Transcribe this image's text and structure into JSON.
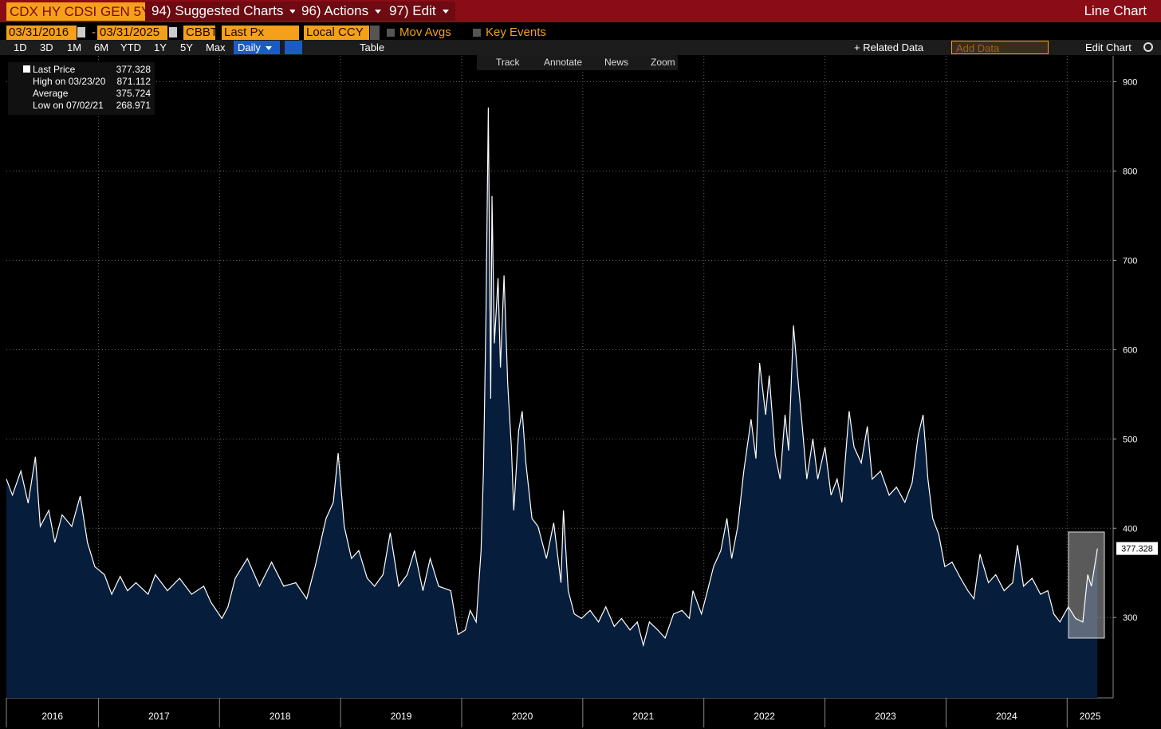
{
  "header": {
    "security": "CDX HY CDSI GEN 5Y",
    "menus": [
      "94) Suggested Charts",
      "96) Actions",
      "97) Edit"
    ],
    "chart_kind": "Line Chart"
  },
  "settings": {
    "start_date": "03/31/2016",
    "separator": "-",
    "end_date": "03/31/2025",
    "source": "CBBT",
    "field": "Last Px",
    "currency": "Local CCY",
    "options": [
      "Mov Avgs",
      "Key Events"
    ]
  },
  "toolbar": {
    "periods": [
      "1D",
      "3D",
      "1M",
      "6M",
      "YTD",
      "1Y",
      "5Y",
      "Max"
    ],
    "frequency": "Daily",
    "table": "Table",
    "related": "+ Related Data",
    "add_data": "Add Data",
    "edit": "Edit Chart"
  },
  "chart_tools": [
    "Track",
    "Annotate",
    "News",
    "Zoom"
  ],
  "legend": [
    {
      "label": "Last Price",
      "value": "377.328"
    },
    {
      "label": "High on 03/23/20",
      "value": "871.112"
    },
    {
      "label": "Average",
      "value": "375.724"
    },
    {
      "label": "Low on 07/02/21",
      "value": "268.971"
    }
  ],
  "chart_data": {
    "type": "line",
    "xlim": [
      2016.24,
      2025.38
    ],
    "ylim": [
      210,
      929
    ],
    "yticks": [
      300,
      400,
      500,
      600,
      700,
      800,
      900
    ],
    "xticks": [
      2017,
      2018,
      2019,
      2020,
      2021,
      2022,
      2023,
      2024,
      2025
    ],
    "year_labels": [
      "2016",
      "2017",
      "2018",
      "2019",
      "2020",
      "2021",
      "2022",
      "2023",
      "2024",
      "2025"
    ],
    "grid": true,
    "series": [
      {
        "name": "Last Price",
        "color": "#ffffff",
        "fill": "#071d3c",
        "x": [
          2016.24,
          2016.29,
          2016.36,
          2016.42,
          2016.48,
          2016.52,
          2016.59,
          2016.64,
          2016.7,
          2016.78,
          2016.85,
          2016.91,
          2016.97,
          2017.05,
          2017.11,
          2017.18,
          2017.24,
          2017.31,
          2017.41,
          2017.47,
          2017.57,
          2017.67,
          2017.77,
          2017.87,
          2017.93,
          2018.02,
          2018.07,
          2018.13,
          2018.23,
          2018.33,
          2018.43,
          2018.53,
          2018.63,
          2018.72,
          2018.79,
          2018.88,
          2018.94,
          2018.98,
          2019.03,
          2019.09,
          2019.15,
          2019.22,
          2019.28,
          2019.35,
          2019.41,
          2019.48,
          2019.55,
          2019.61,
          2019.68,
          2019.74,
          2019.81,
          2019.91,
          2019.97,
          2020.03,
          2020.07,
          2020.12,
          2020.16,
          2020.18,
          2020.2,
          2020.22,
          2020.24,
          2020.25,
          2020.27,
          2020.3,
          2020.32,
          2020.35,
          2020.38,
          2020.41,
          2020.43,
          2020.47,
          2020.5,
          2020.53,
          2020.58,
          2020.63,
          2020.7,
          2020.76,
          2020.82,
          2020.84,
          2020.88,
          2020.93,
          2020.99,
          2021.06,
          2021.13,
          2021.19,
          2021.26,
          2021.32,
          2021.39,
          2021.45,
          2021.5,
          2021.55,
          2021.62,
          2021.68,
          2021.75,
          2021.82,
          2021.88,
          2021.91,
          2021.98,
          2022.03,
          2022.08,
          2022.14,
          2022.19,
          2022.23,
          2022.28,
          2022.33,
          2022.39,
          2022.43,
          2022.46,
          2022.51,
          2022.54,
          2022.59,
          2022.63,
          2022.67,
          2022.7,
          2022.74,
          2022.78,
          2022.81,
          2022.85,
          2022.9,
          2022.94,
          2023.0,
          2023.05,
          2023.1,
          2023.14,
          2023.2,
          2023.24,
          2023.3,
          2023.35,
          2023.39,
          2023.46,
          2023.53,
          2023.59,
          2023.66,
          2023.72,
          2023.77,
          2023.81,
          2023.85,
          2023.89,
          2023.94,
          2023.99,
          2024.05,
          2024.12,
          2024.18,
          2024.23,
          2024.28,
          2024.35,
          2024.41,
          2024.48,
          2024.55,
          2024.59,
          2024.64,
          2024.71,
          2024.78,
          2024.84,
          2024.89,
          2024.94,
          2025.01,
          2025.07,
          2025.13,
          2025.17,
          2025.2,
          2025.25
        ],
        "values": [
          455,
          437,
          464,
          428,
          480,
          402,
          420,
          384,
          415,
          402,
          436,
          384,
          357,
          348,
          326,
          346,
          330,
          339,
          326,
          348,
          330,
          344,
          326,
          335,
          317,
          299,
          312,
          344,
          366,
          335,
          362,
          335,
          339,
          321,
          357,
          411,
          429,
          484,
          402,
          366,
          375,
          344,
          335,
          348,
          395,
          335,
          348,
          375,
          330,
          366,
          335,
          330,
          281,
          286,
          308,
          295,
          375,
          464,
          634,
          871.112,
          545,
          772,
          607,
          680,
          580,
          683,
          562,
          491,
          420,
          509,
          531,
          473,
          411,
          402,
          366,
          406,
          339,
          420,
          330,
          304,
          299,
          308,
          295,
          312,
          290,
          299,
          286,
          295,
          268.971,
          295,
          286,
          277,
          304,
          308,
          299,
          330,
          304,
          330,
          357,
          375,
          411,
          366,
          402,
          464,
          522,
          478,
          585,
          527,
          571,
          482,
          455,
          527,
          487,
          627,
          562,
          518,
          455,
          500,
          455,
          491,
          437,
          455,
          429,
          531,
          491,
          473,
          514,
          455,
          464,
          437,
          446,
          429,
          451,
          504,
          527,
          455,
          411,
          393,
          357,
          362,
          344,
          330,
          321,
          371,
          339,
          348,
          330,
          339,
          381,
          335,
          344,
          326,
          330,
          304,
          295,
          312,
          299,
          295,
          348,
          335,
          377.328
        ]
      }
    ]
  }
}
